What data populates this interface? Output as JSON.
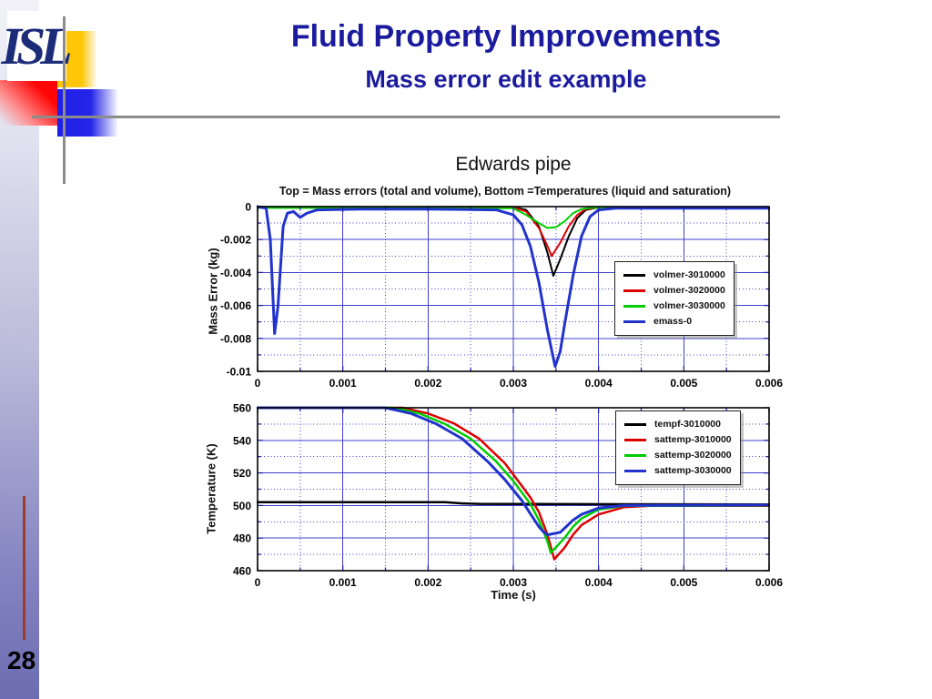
{
  "slide": {
    "title": "Fluid Property Improvements",
    "subtitle": "Mass error edit example",
    "logo_text": "ISL",
    "page_number": "28",
    "colors": {
      "title_navy": "#1b1b9e",
      "rule_gray": "#8c8c8c",
      "strip_purple": "#6c6cb2",
      "footer_line_red": "#9e3b2a"
    }
  },
  "chart_data": [
    {
      "type": "line",
      "figure_title": "Edwards pipe",
      "figure_subtitle": "Top = Mass errors (total and volume), Bottom =Temperatures (liquid and saturation)",
      "ylabel": "Mass Error (kg)",
      "xlim": [
        0,
        0.006
      ],
      "ylim": [
        -0.01,
        0
      ],
      "x_ticks": [
        0,
        0.001,
        0.002,
        0.003,
        0.004,
        0.005,
        0.006
      ],
      "x_tick_labels": [
        "0",
        "0.001",
        "0.002",
        "0.003",
        "0.004",
        "0.005",
        "0.006"
      ],
      "x_minor_step": 0.0005,
      "y_ticks": [
        0,
        -0.002,
        -0.004,
        -0.006,
        -0.008,
        -0.01
      ],
      "y_tick_labels": [
        "0",
        "-0.002",
        "-0.004",
        "-0.006",
        "-0.008",
        "-0.01"
      ],
      "y_minor_step": 0.001,
      "grid": true,
      "grid_color": "#4040cc",
      "legend_position": "right-center",
      "series": [
        {
          "name": "volmer-3010000",
          "color": "#000000",
          "width": 2,
          "points": [
            [
              0,
              -2e-05
            ],
            [
              0.003,
              -2e-05
            ],
            [
              0.00315,
              -0.0002
            ],
            [
              0.0033,
              -0.0012
            ],
            [
              0.0034,
              -0.0028
            ],
            [
              0.00347,
              -0.0042
            ],
            [
              0.00355,
              -0.0032
            ],
            [
              0.00365,
              -0.0018
            ],
            [
              0.00375,
              -0.0007
            ],
            [
              0.00385,
              -0.0002
            ],
            [
              0.004,
              -5e-05
            ],
            [
              0.006,
              -5e-05
            ]
          ]
        },
        {
          "name": "volmer-3020000",
          "color": "#dd0000",
          "width": 2,
          "points": [
            [
              0,
              -4e-05
            ],
            [
              0.003,
              -4e-05
            ],
            [
              0.00315,
              -0.0003
            ],
            [
              0.0033,
              -0.0013
            ],
            [
              0.0034,
              -0.0024
            ],
            [
              0.00345,
              -0.003
            ],
            [
              0.00355,
              -0.0022
            ],
            [
              0.00365,
              -0.0012
            ],
            [
              0.00375,
              -0.0005
            ],
            [
              0.00385,
              -0.00015
            ],
            [
              0.004,
              -5e-05
            ],
            [
              0.006,
              -5e-05
            ]
          ]
        },
        {
          "name": "volmer-3030000",
          "color": "#00cc00",
          "width": 2,
          "points": [
            [
              0,
              -8e-05
            ],
            [
              0.003,
              -0.0001
            ],
            [
              0.00315,
              -0.0005
            ],
            [
              0.0033,
              -0.001
            ],
            [
              0.0034,
              -0.0013
            ],
            [
              0.0035,
              -0.00125
            ],
            [
              0.0036,
              -0.0009
            ],
            [
              0.0037,
              -0.0004
            ],
            [
              0.0038,
              -0.00015
            ],
            [
              0.0039,
              -8e-05
            ],
            [
              0.006,
              -8e-05
            ]
          ]
        },
        {
          "name": "emass-0",
          "color": "#2233cc",
          "width": 3,
          "points": [
            [
              0,
              0
            ],
            [
              0.0001,
              -0.0001
            ],
            [
              0.00015,
              -0.002
            ],
            [
              0.0002,
              -0.0077
            ],
            [
              0.00024,
              -0.006
            ],
            [
              0.0003,
              -0.0012
            ],
            [
              0.00035,
              -0.0004
            ],
            [
              0.00042,
              -0.0003
            ],
            [
              0.0005,
              -0.00065
            ],
            [
              0.00058,
              -0.0004
            ],
            [
              0.0007,
              -0.0002
            ],
            [
              0.0012,
              -0.00015
            ],
            [
              0.002,
              -0.00015
            ],
            [
              0.0028,
              -0.0002
            ],
            [
              0.003,
              -0.0005
            ],
            [
              0.0031,
              -0.0011
            ],
            [
              0.0032,
              -0.0024
            ],
            [
              0.0033,
              -0.0046
            ],
            [
              0.0034,
              -0.0075
            ],
            [
              0.00349,
              -0.0097
            ],
            [
              0.00355,
              -0.0088
            ],
            [
              0.0036,
              -0.0072
            ],
            [
              0.0037,
              -0.0042
            ],
            [
              0.0038,
              -0.0018
            ],
            [
              0.0039,
              -0.0006
            ],
            [
              0.004,
              -0.0002
            ],
            [
              0.0042,
              -0.0001
            ],
            [
              0.006,
              -0.0001
            ]
          ]
        }
      ]
    },
    {
      "type": "line",
      "ylabel": "Temperature (K)",
      "xlabel": "Time (s)",
      "xlim": [
        0,
        0.006
      ],
      "ylim": [
        460,
        560
      ],
      "x_ticks": [
        0,
        0.001,
        0.002,
        0.003,
        0.004,
        0.005,
        0.006
      ],
      "x_tick_labels": [
        "0",
        "0.001",
        "0.002",
        "0.003",
        "0.004",
        "0.005",
        "0.006"
      ],
      "x_minor_step": 0.0005,
      "y_ticks": [
        560,
        540,
        520,
        500,
        480,
        460
      ],
      "y_tick_labels": [
        "560",
        "540",
        "520",
        "500",
        "480",
        "460"
      ],
      "y_minor_step": 10,
      "grid": true,
      "grid_color": "#4040cc",
      "legend_position": "right-top",
      "series": [
        {
          "name": "tempf-3010000",
          "color": "#000000",
          "width": 2.5,
          "points": [
            [
              0,
              502
            ],
            [
              0.0022,
              502
            ],
            [
              0.0024,
              501.3
            ],
            [
              0.0026,
              501
            ],
            [
              0.0042,
              500.8
            ],
            [
              0.006,
              500.6
            ]
          ]
        },
        {
          "name": "sattemp-3010000",
          "color": "#dd0000",
          "width": 2.5,
          "points": [
            [
              0,
              560
            ],
            [
              0.0017,
              560
            ],
            [
              0.002,
              556.5
            ],
            [
              0.0023,
              550.5
            ],
            [
              0.0026,
              541
            ],
            [
              0.0029,
              526
            ],
            [
              0.0031,
              512
            ],
            [
              0.0032,
              505
            ],
            [
              0.0033,
              496
            ],
            [
              0.0034,
              482
            ],
            [
              0.00348,
              467
            ],
            [
              0.0036,
              474
            ],
            [
              0.0037,
              482
            ],
            [
              0.0038,
              488
            ],
            [
              0.004,
              494.5
            ],
            [
              0.0043,
              499
            ],
            [
              0.0046,
              499.8
            ],
            [
              0.006,
              499.8
            ]
          ]
        },
        {
          "name": "sattemp-3020000",
          "color": "#00cc00",
          "width": 2.5,
          "points": [
            [
              0,
              560
            ],
            [
              0.0016,
              560
            ],
            [
              0.0019,
              556.5
            ],
            [
              0.0022,
              550
            ],
            [
              0.0025,
              541
            ],
            [
              0.0028,
              527
            ],
            [
              0.003,
              515
            ],
            [
              0.0032,
              501
            ],
            [
              0.0033,
              491
            ],
            [
              0.0034,
              478
            ],
            [
              0.00344,
              471
            ],
            [
              0.0036,
              480
            ],
            [
              0.0037,
              487
            ],
            [
              0.0038,
              492
            ],
            [
              0.004,
              497.5
            ],
            [
              0.0043,
              499.8
            ],
            [
              0.006,
              500
            ]
          ]
        },
        {
          "name": "sattemp-3030000",
          "color": "#2233cc",
          "width": 3,
          "points": [
            [
              0,
              560
            ],
            [
              0.0015,
              560
            ],
            [
              0.0018,
              556.5
            ],
            [
              0.0021,
              550
            ],
            [
              0.0024,
              541
            ],
            [
              0.0027,
              527
            ],
            [
              0.0029,
              516
            ],
            [
              0.0031,
              503
            ],
            [
              0.0032,
              495
            ],
            [
              0.0033,
              487
            ],
            [
              0.00335,
              484
            ],
            [
              0.0034,
              482
            ],
            [
              0.00355,
              483.5
            ],
            [
              0.0037,
              491
            ],
            [
              0.0038,
              494.5
            ],
            [
              0.004,
              498.5
            ],
            [
              0.0043,
              500
            ],
            [
              0.006,
              500.3
            ]
          ]
        }
      ]
    }
  ]
}
